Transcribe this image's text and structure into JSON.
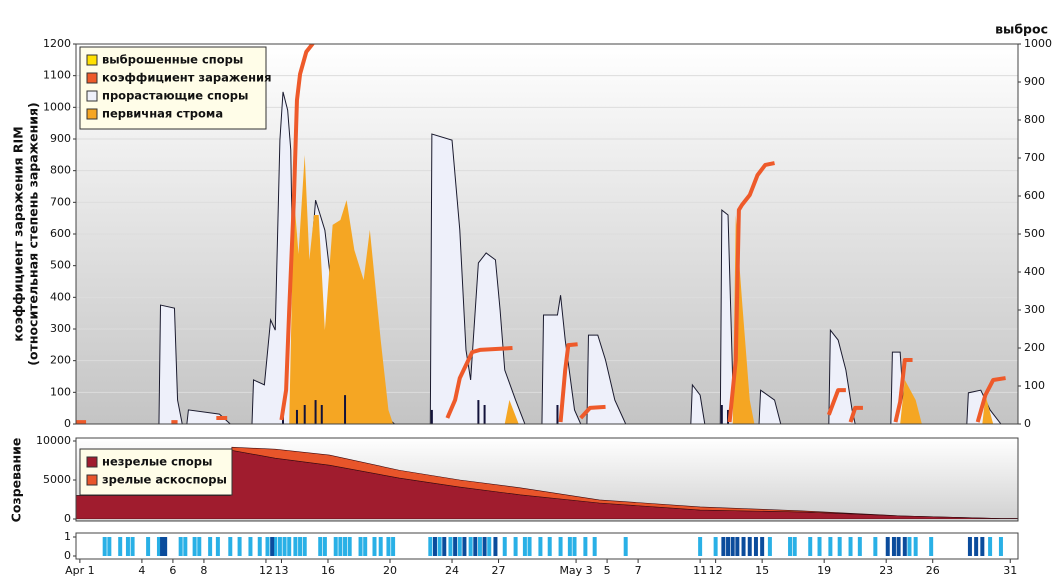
{
  "chart_data": [
    {
      "type": "area-line",
      "y_label": "коэффициент заражения RIM",
      "y_label_sub": "(относительная степень заражения)",
      "y2_label": "выброс",
      "xlim": [
        -0.25,
        60.5
      ],
      "ylim": [
        0,
        1200
      ],
      "yticks": [
        0,
        100,
        200,
        300,
        400,
        500,
        600,
        700,
        800,
        900,
        1000,
        1100,
        1200
      ],
      "y2lim": [
        0,
        1000
      ],
      "y2ticks": [
        0,
        100,
        200,
        300,
        400,
        500,
        600,
        700,
        800,
        900,
        1000
      ],
      "grid": true,
      "legend": "upper left",
      "series": [
        {
          "name": "выброшенные споры",
          "color": "#ffe000",
          "spike_color": "#12123a",
          "kind": "spike",
          "axis": "y2",
          "x": [
            13.1,
            14.0,
            14.5,
            15.2,
            15.6,
            17.1,
            22.7,
            25.7,
            26.1,
            30.8,
            41.4,
            41.8
          ],
          "values": [
            50,
            37,
            50,
            63,
            50,
            76,
            37,
            63,
            50,
            50,
            50,
            37
          ]
        },
        {
          "name": "коэффициент заражения",
          "color": "#ee5a2a",
          "kind": "line",
          "x": [
            -0.25,
            0.4,
            0.5,
            5.9,
            6.3,
            7,
            8.8,
            9.5,
            10,
            13.0,
            13.3,
            13.5,
            13.8,
            14.0,
            14.2,
            14.6,
            15.0,
            15.2,
            20,
            23.7,
            24.2,
            24.5,
            24.9,
            25.3,
            25.8,
            27.9,
            29,
            31.0,
            31.3,
            31.5,
            32.1,
            32.2,
            32.3,
            32.9,
            33.9,
            38,
            41.9,
            42.3,
            42.5,
            42.7,
            43.2,
            43.7,
            44.2,
            44.8,
            46,
            48.3,
            48.9,
            49.4,
            49.55,
            49.7,
            50.0,
            50.5,
            51.5,
            52.6,
            52.9,
            53.2,
            53.7,
            56,
            57.9,
            58.4,
            58.9,
            59.7
          ],
          "values": [
            6,
            6,
            null,
            6,
            6,
            null,
            19,
            19,
            null,
            13,
            107,
            360,
            707,
            1023,
            1105,
            1175,
            1200,
            1260,
            null,
            19,
            76,
            145,
            186,
            227,
            234,
            240,
            null,
            6,
            171,
            249,
            252,
            null,
            19,
            51,
            54,
            null,
            6,
            202,
            676,
            692,
            723,
            786,
            818,
            824,
            null,
            29,
            107,
            107,
            null,
            6,
            51,
            51,
            null,
            6,
            70,
            202,
            202,
            null,
            6,
            92,
            139,
            145
          ]
        },
        {
          "name": "прорастающие споры",
          "color": "#eef0fa",
          "outline": "#1a1a2e",
          "kind": "area",
          "axis": "y2",
          "x": [
            -0.25,
            5.1,
            5.2,
            6.1,
            6.3,
            6.6,
            6.9,
            7.0,
            9.0,
            9.7,
            11.1,
            11.2,
            11.9,
            12.3,
            12.6,
            12.9,
            13.1,
            13.4,
            13.6,
            13.8,
            14.1,
            14.4,
            14.8,
            15.2,
            15.5,
            15.8,
            16.1,
            16.6,
            17.1,
            17.7,
            18.4,
            18.8,
            19.2,
            20.0,
            20.3,
            22.6,
            22.7,
            24.0,
            24.5,
            24.9,
            25.2,
            25.7,
            26.2,
            26.8,
            27.1,
            27.4,
            28.1,
            28.7,
            29.8,
            29.9,
            30.8,
            31.0,
            31.3,
            31.9,
            32.3,
            32.7,
            32.8,
            33.4,
            33.9,
            34.5,
            35.2,
            39.4,
            39.5,
            40.0,
            40.3,
            41.3,
            41.4,
            41.8,
            42.1,
            42.5,
            42.9,
            43.8,
            43.9,
            44.8,
            45.2,
            48.3,
            48.4,
            48.9,
            49.4,
            49.8,
            50.0,
            52.3,
            52.4,
            52.9,
            53.2,
            57.2,
            57.3,
            58.1,
            58.7,
            59.4,
            60.5
          ],
          "values": [
            0,
            0,
            313,
            305,
            63,
            0,
            0,
            37,
            26,
            0,
            0,
            116,
            103,
            274,
            247,
            747,
            874,
            826,
            721,
            221,
            432,
            247,
            379,
            589,
            550,
            510,
            405,
            247,
            274,
            247,
            274,
            247,
            89,
            10,
            0,
            0,
            763,
            747,
            511,
            195,
            116,
            424,
            450,
            432,
            300,
            142,
            63,
            0,
            0,
            287,
            287,
            339,
            221,
            37,
            0,
            0,
            234,
            234,
            168,
            63,
            0,
            0,
            103,
            76,
            0,
            0,
            563,
            550,
            116,
            24,
            0,
            0,
            89,
            63,
            0,
            0,
            247,
            221,
            142,
            37,
            0,
            0,
            189,
            189,
            0,
            0,
            82,
            89,
            37,
            0,
            0
          ]
        },
        {
          "name": "первичная строма",
          "color": "#f5a623",
          "kind": "area",
          "axis": "y2",
          "x": [
            13.5,
            13.8,
            14.1,
            14.5,
            14.8,
            15.1,
            15.4,
            15.8,
            16.3,
            16.8,
            17.2,
            17.7,
            18.3,
            18.7,
            19.4,
            19.9,
            20.2,
            27.4,
            27.7,
            28.3,
            42.1,
            42.3,
            42.7,
            43.2,
            43.5,
            52.9,
            53.2,
            53.9,
            54.3,
            58.2,
            58.4,
            58.9
          ],
          "values": [
            0,
            603,
            447,
            708,
            432,
            550,
            550,
            247,
            524,
            537,
            589,
            458,
            379,
            511,
            221,
            37,
            0,
            0,
            63,
            0,
            0,
            550,
            326,
            63,
            0,
            0,
            116,
            63,
            0,
            0,
            76,
            0
          ]
        }
      ]
    },
    {
      "type": "stacked-area",
      "y_label": "Созревание",
      "xlim": [
        -0.25,
        60.5
      ],
      "ylim": [
        0,
        10000
      ],
      "yticks": [
        0,
        5000,
        10000
      ],
      "legend": "upper left",
      "x": [
        -0.25,
        9.7,
        9.8,
        12.6,
        16.1,
        20.6,
        24.5,
        28.4,
        33.5,
        40,
        46.5,
        52.9,
        59.4,
        60.5
      ],
      "series": [
        {
          "name": "незрелые споры",
          "color": "#a01c2e",
          "values": [
            3000,
            3000,
            8800,
            7800,
            6900,
            5250,
            4100,
            3100,
            2050,
            1150,
            900,
            400,
            50,
            50
          ]
        },
        {
          "name": "зрелые аскоспоры",
          "color": "#e8552a",
          "values": [
            0,
            0,
            400,
            1150,
            1300,
            1000,
            900,
            900,
            400,
            400,
            150,
            0,
            0,
            0
          ]
        }
      ]
    },
    {
      "type": "stripes",
      "xlim": [
        -0.25,
        60.5
      ],
      "ylim": [
        0,
        1
      ],
      "yticks": [
        0,
        1
      ],
      "xticks": [
        {
          "value": 0,
          "label": "Apr 1"
        },
        4,
        6,
        8,
        12,
        13,
        16,
        20,
        24,
        27,
        {
          "value": 32,
          "label": "May 3"
        },
        {
          "value": 34,
          "label": "5"
        },
        {
          "value": 36,
          "label": "7"
        },
        {
          "value": 40,
          "label": "11"
        },
        {
          "value": 41,
          "label": "12"
        },
        {
          "value": 44,
          "label": "15"
        },
        {
          "value": 48,
          "label": "19"
        },
        {
          "value": 52,
          "label": "23"
        },
        {
          "value": 55,
          "label": "26"
        },
        {
          "value": 60,
          "label": "31"
        }
      ],
      "series": [
        {
          "color": "#29b0e6",
          "x": [
            1.6,
            1.9,
            2.6,
            3.1,
            3.4,
            4.4,
            5.1,
            6.5,
            6.8,
            7.4,
            7.7,
            8.4,
            8.9,
            9.7,
            10.3,
            11.0,
            11.6,
            12.1,
            12.6,
            12.9,
            13.2,
            13.5,
            13.9,
            14.2,
            14.5,
            15.5,
            15.8,
            16.5,
            16.8,
            17.1,
            17.4,
            18.1,
            18.4,
            19.0,
            19.4,
            19.9,
            20.2,
            22.6,
            23.2,
            23.9,
            24.5,
            25.2,
            25.8,
            26.4,
            27.4,
            28.1,
            28.7,
            29.0,
            29.7,
            30.3,
            31.0,
            31.6,
            31.9,
            32.6,
            33.2,
            35.2,
            40.0,
            41.0,
            44.5,
            45.8,
            46.1,
            47.1,
            47.7,
            48.4,
            49.0,
            49.7,
            50.3,
            51.3,
            53.5,
            53.9,
            54.9,
            58.7,
            59.4
          ],
          "values": [
            1,
            1,
            1,
            1,
            1,
            1,
            1,
            1,
            1,
            1,
            1,
            1,
            1,
            1,
            1,
            1,
            1,
            1,
            1,
            1,
            1,
            1,
            1,
            1,
            1,
            1,
            1,
            1,
            1,
            1,
            1,
            1,
            1,
            1,
            1,
            1,
            1,
            1,
            1,
            1,
            1,
            1,
            1,
            1,
            1,
            1,
            1,
            1,
            1,
            1,
            1,
            1,
            1,
            1,
            1,
            1,
            1,
            1,
            1,
            1,
            1,
            1,
            1,
            1,
            1,
            1,
            1,
            1,
            1,
            1,
            1,
            1,
            1
          ]
        },
        {
          "color": "#0b4c9c",
          "x": [
            5.3,
            5.5,
            12.4,
            22.9,
            23.5,
            24.2,
            24.8,
            25.5,
            26.1,
            26.8,
            41.5,
            41.8,
            42.1,
            42.4,
            42.8,
            43.2,
            43.6,
            44.0,
            52.1,
            52.5,
            52.8,
            53.2,
            57.4,
            57.8,
            58.2
          ],
          "values": [
            1,
            1,
            1,
            1,
            1,
            1,
            1,
            1,
            1,
            1,
            1,
            1,
            1,
            1,
            1,
            1,
            1,
            1,
            1,
            1,
            1,
            1,
            1,
            1,
            1
          ]
        }
      ]
    }
  ]
}
